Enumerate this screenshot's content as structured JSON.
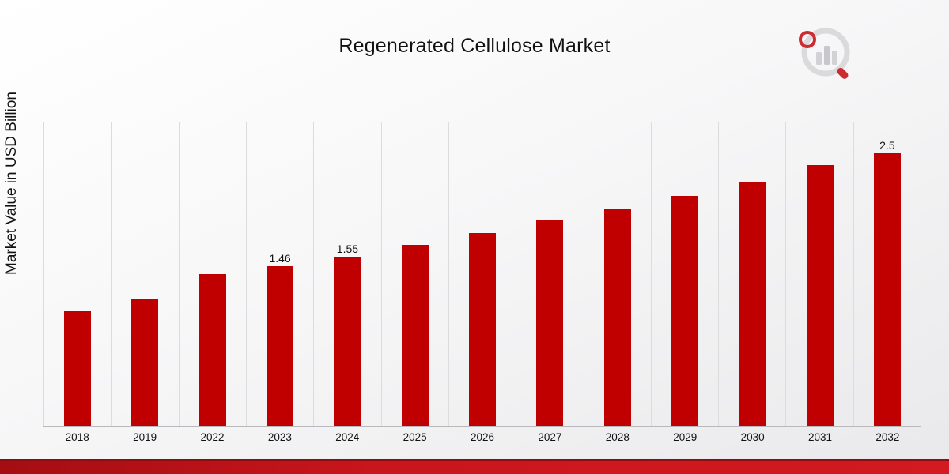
{
  "title": "Regenerated Cellulose Market",
  "y_axis_label": "Market Value in USD Billion",
  "chart_data": {
    "type": "bar",
    "title": "Regenerated Cellulose Market",
    "xlabel": "",
    "ylabel": "Market Value in USD Billion",
    "categories": [
      "2018",
      "2019",
      "2022",
      "2023",
      "2024",
      "2025",
      "2026",
      "2027",
      "2028",
      "2029",
      "2030",
      "2031",
      "2032"
    ],
    "values": [
      1.05,
      1.16,
      1.39,
      1.46,
      1.55,
      1.66,
      1.77,
      1.88,
      1.99,
      2.11,
      2.24,
      2.39,
      2.5
    ],
    "value_labels": [
      "",
      "",
      "",
      "1.46",
      "1.55",
      "",
      "",
      "",
      "",
      "",
      "",
      "",
      "2.5"
    ],
    "ylim": [
      0,
      2.78
    ],
    "grid": "vertical-only",
    "legend": "none",
    "bar_color": "#c00000",
    "unit": "USD Billion"
  },
  "branding": {
    "logo_name": "market-research-future-logo",
    "accent_color": "#c8161c"
  }
}
